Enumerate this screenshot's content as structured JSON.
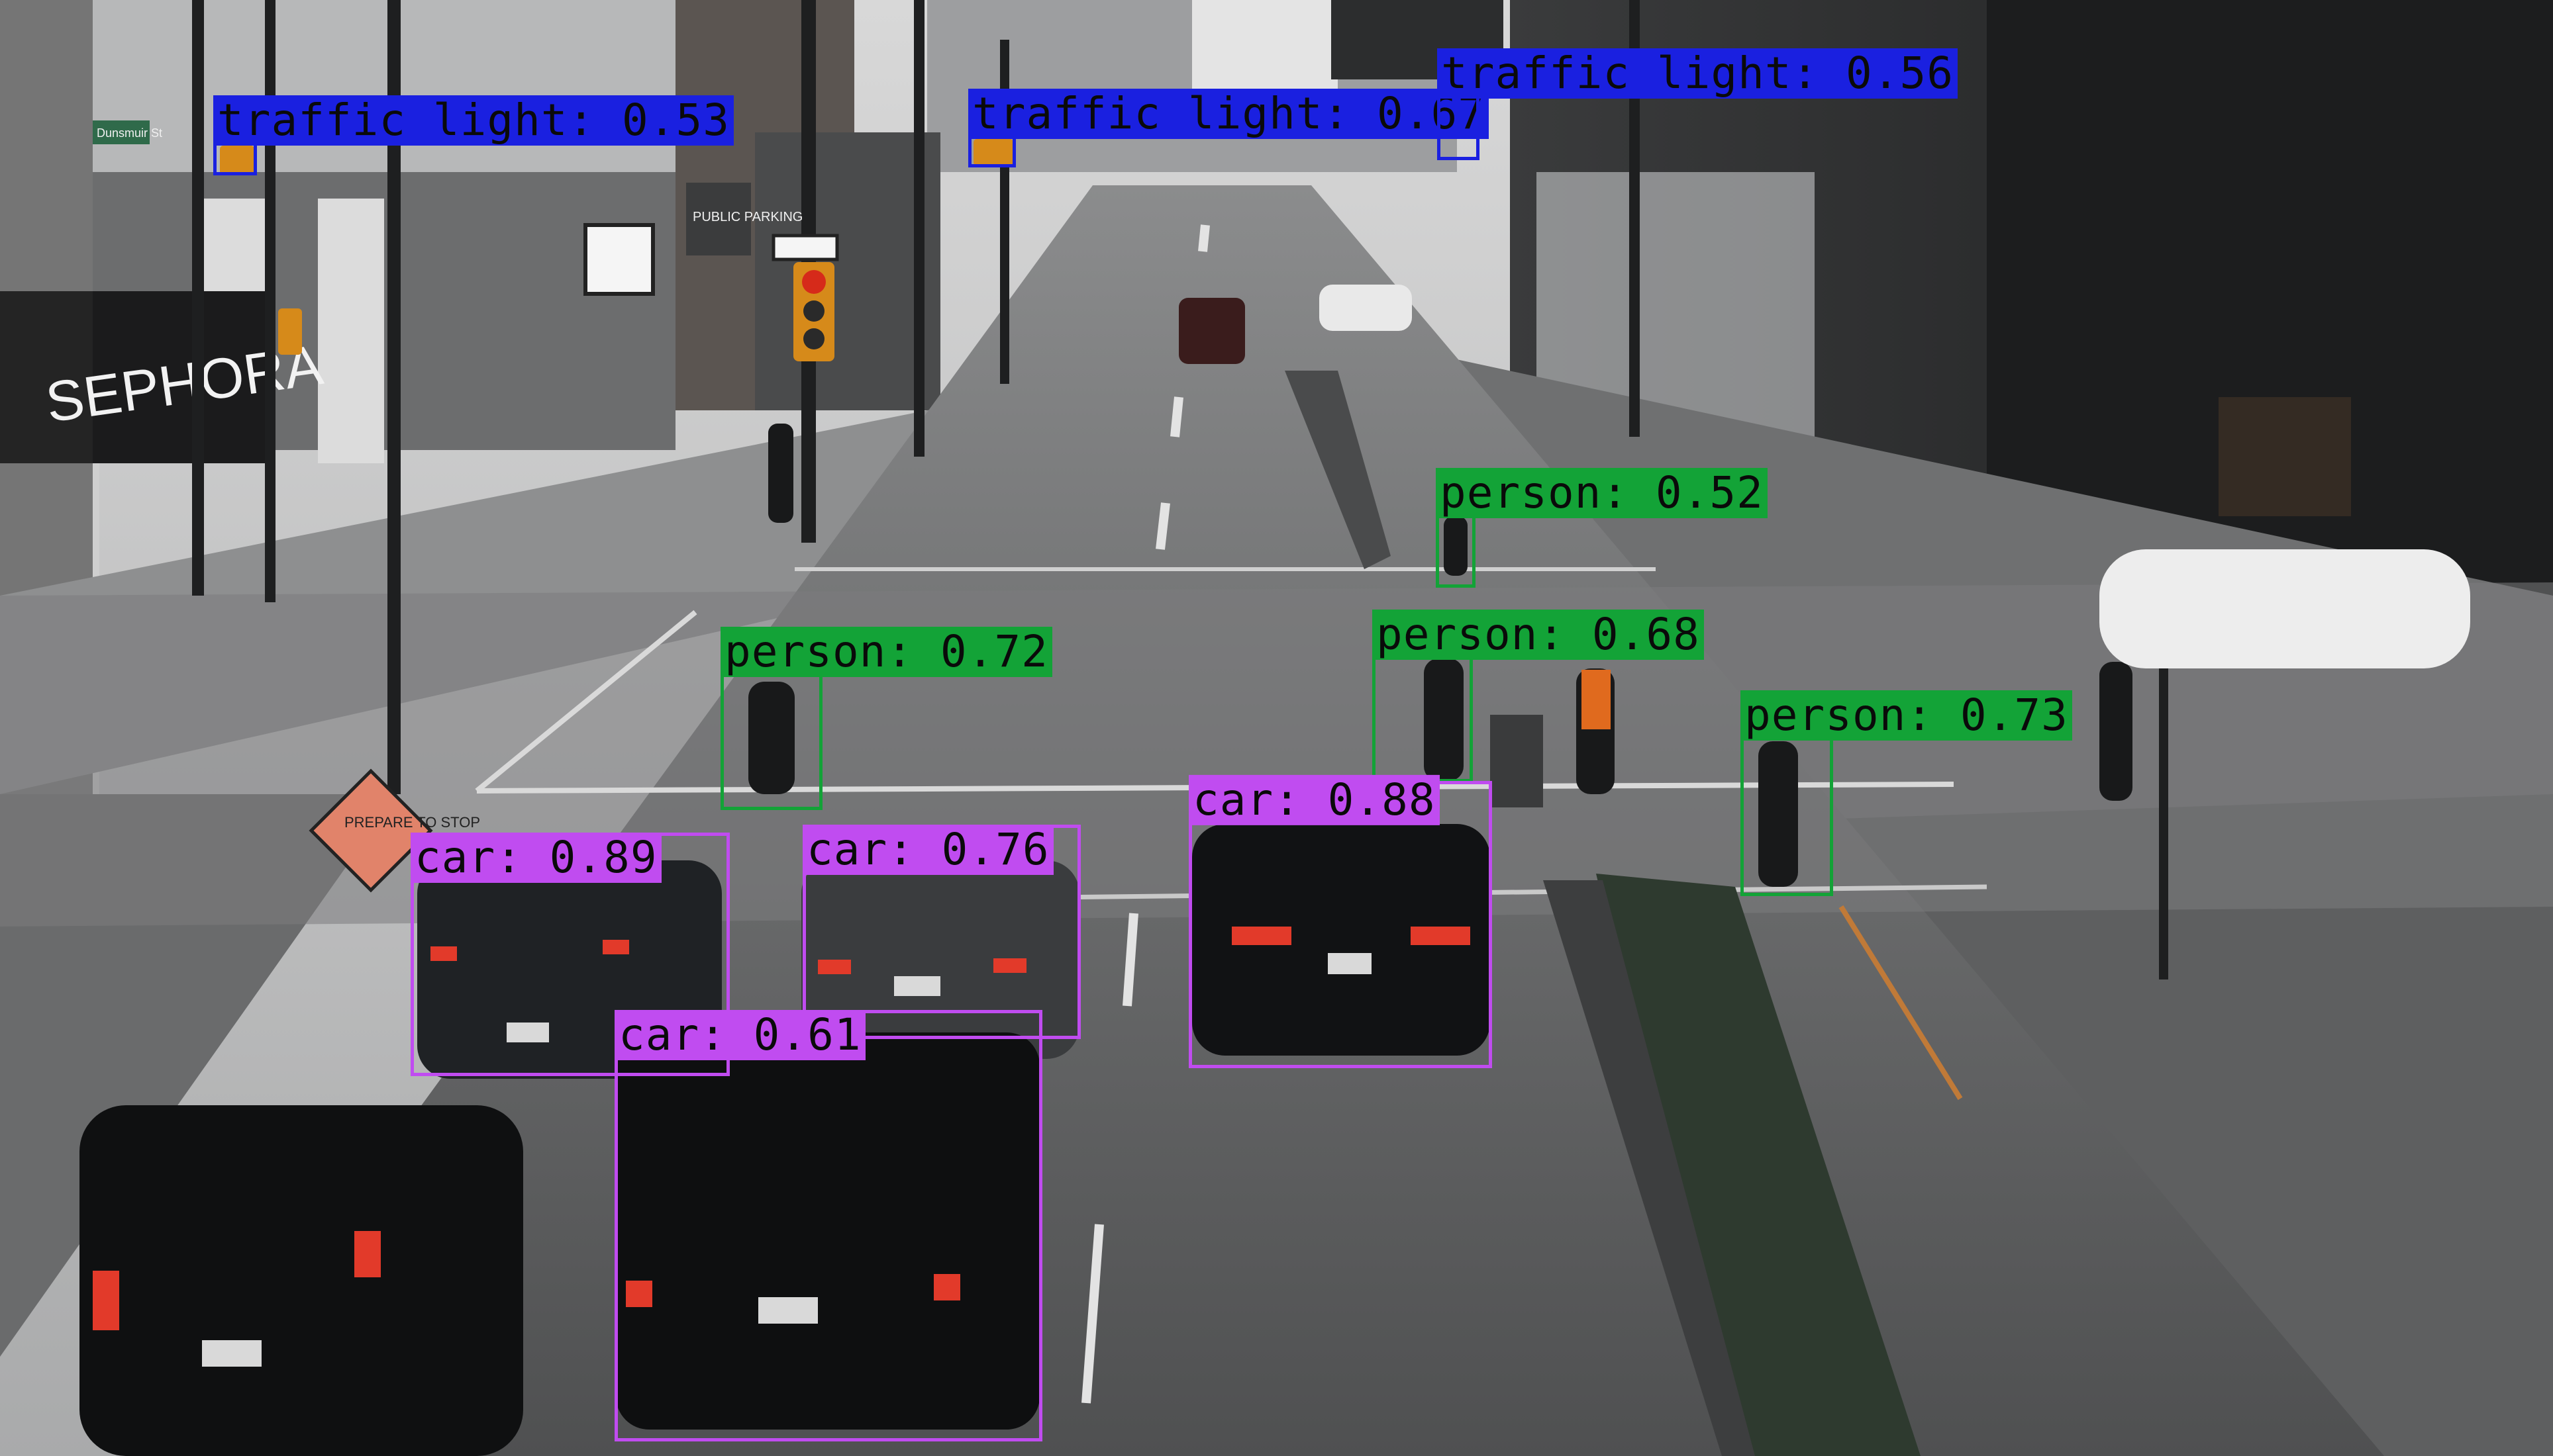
{
  "colors": {
    "car": "#c04cf0",
    "person": "#13a337",
    "traffic_light": "#1a20e0"
  },
  "scene": {
    "store_sign": "SEPHORA",
    "sign_street": "Dunsmuir St",
    "sign_parking": "PUBLIC PARKING",
    "sign_prepare": "PREPARE TO STOP"
  },
  "detections": [
    {
      "label": "traffic light: 0.53",
      "class": "traffic_light"
    },
    {
      "label": "traffic light: 0.67",
      "class": "traffic_light"
    },
    {
      "label": "traffic light: 0.56",
      "class": "traffic_light"
    },
    {
      "label": "person: 0.52",
      "class": "person"
    },
    {
      "label": "person: 0.68",
      "class": "person"
    },
    {
      "label": "person: 0.72",
      "class": "person"
    },
    {
      "label": "person: 0.73",
      "class": "person"
    },
    {
      "label": "car: 0.88",
      "class": "car"
    },
    {
      "label": "car: 0.89",
      "class": "car"
    },
    {
      "label": "car: 0.76",
      "class": "car"
    },
    {
      "label": "car: 0.61",
      "class": "car"
    }
  ]
}
